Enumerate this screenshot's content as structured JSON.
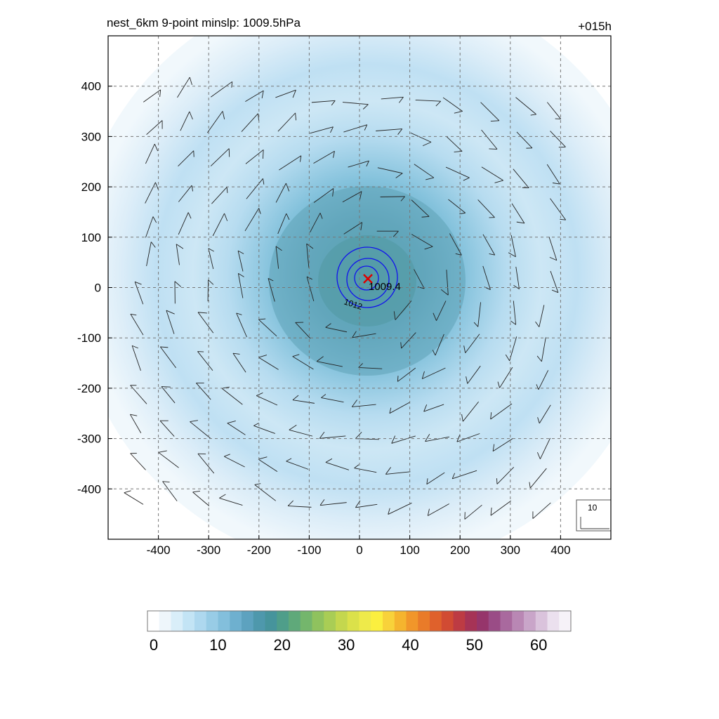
{
  "header": {
    "title": "nest_6km  9-point minslp: 1009.5hPa",
    "time_label": "+015h"
  },
  "chart_data": {
    "type": "heatmap",
    "title": "nest_6km  9-point minslp: 1009.5hPa",
    "xlim": [
      -500,
      500
    ],
    "ylim": [
      -500,
      500
    ],
    "x_ticks": [
      -400,
      -300,
      -200,
      -100,
      0,
      100,
      200,
      300,
      400
    ],
    "y_ticks": [
      400,
      300,
      200,
      100,
      0,
      -100,
      -200,
      -300,
      -400
    ],
    "grid": true,
    "grid_style": "dashed",
    "center": {
      "x": 15,
      "y": 17,
      "marker": "x",
      "color": "#dd0000",
      "label": "1009.4"
    },
    "pressure_contours": {
      "color": "#1111ee",
      "labels": [
        "1012"
      ]
    },
    "wind_reference": {
      "label": "10"
    },
    "colorbar": {
      "min": 0,
      "max": 66,
      "tick_values": [
        0,
        10,
        20,
        30,
        40,
        50,
        60
      ],
      "tick_labels": [
        "0",
        "10",
        "20",
        "30",
        "40",
        "50",
        "60"
      ],
      "colors": [
        "#ffffff",
        "#eef6fb",
        "#d9eef9",
        "#c3e4f5",
        "#aed8ef",
        "#98cce6",
        "#83bfdc",
        "#6eb0cf",
        "#5da2bf",
        "#4e98ac",
        "#46949c",
        "#4f9e8a",
        "#5fa97a",
        "#74b66c",
        "#8fc25e",
        "#a9cd55",
        "#c4d74e",
        "#dbe14a",
        "#eeea4a",
        "#fbef3f",
        "#f8d23a",
        "#f5b42e",
        "#f1962a",
        "#e97b29",
        "#df612c",
        "#d14b33",
        "#bd3b43",
        "#a63356",
        "#96356b",
        "#9a4c86",
        "#a9699e",
        "#b987b4",
        "#c9a5c9",
        "#dac3dc",
        "#ebe0ee",
        "#f6f2f8"
      ]
    }
  }
}
